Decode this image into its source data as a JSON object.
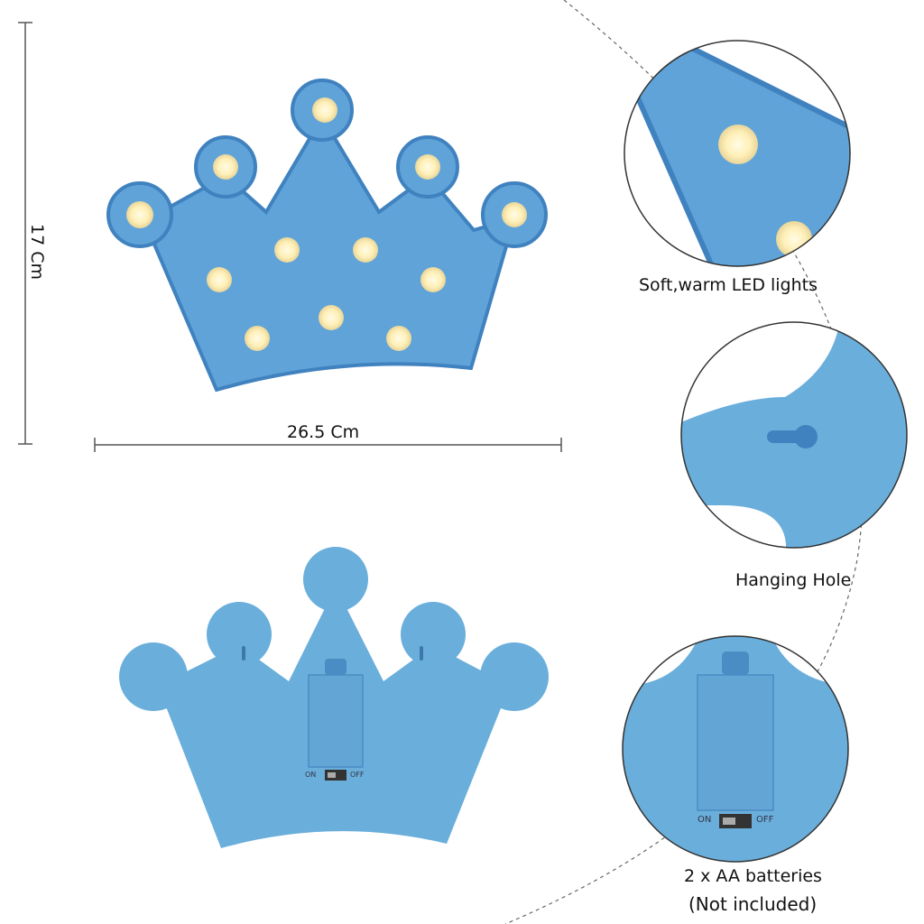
{
  "dimensions": {
    "height": "17 Cm",
    "width": "26.5 Cm"
  },
  "callouts": [
    {
      "label": "Soft,warm LED lights"
    },
    {
      "label": "Hanging Hole"
    },
    {
      "label": "2 x AA batteries",
      "sublabel": "(Not included)"
    }
  ],
  "switch": {
    "on": "ON",
    "off": "OFF"
  },
  "colors": {
    "crown": "#6aaedb",
    "crown_edge": "#3f82bf",
    "led": "#fff2c0",
    "line": "#555555"
  }
}
